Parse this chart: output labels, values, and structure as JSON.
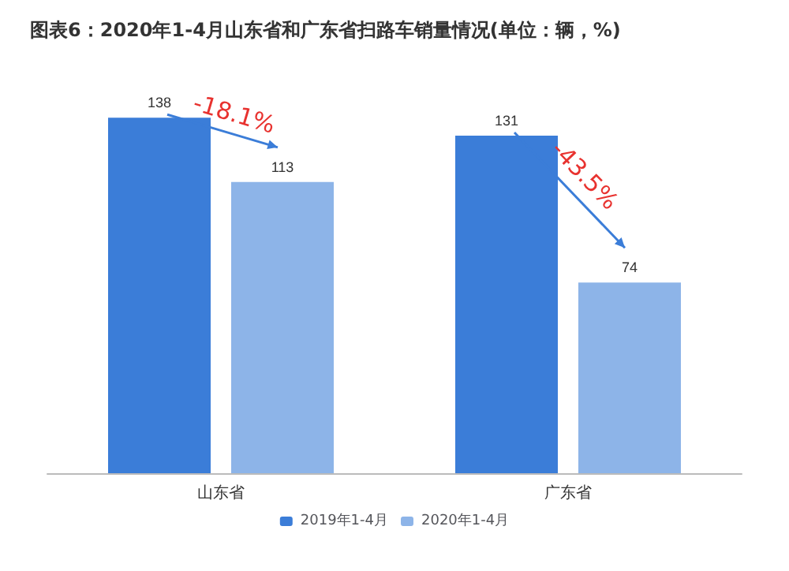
{
  "chart_data": {
    "type": "bar",
    "title": "图表6：2020年1-4月山东省和广东省扫路车销量情况(单位：辆，%)",
    "categories": [
      "山东省",
      "广东省"
    ],
    "series": [
      {
        "name": "2019年1-4月",
        "color": "#3b7dd8",
        "values": [
          138,
          131
        ]
      },
      {
        "name": "2020年1-4月",
        "color": "#8db4e8",
        "values": [
          113,
          74
        ]
      }
    ],
    "data_labels": true,
    "legend": "bottom",
    "annotations": [
      "-18.1%",
      "-43.5%"
    ]
  }
}
